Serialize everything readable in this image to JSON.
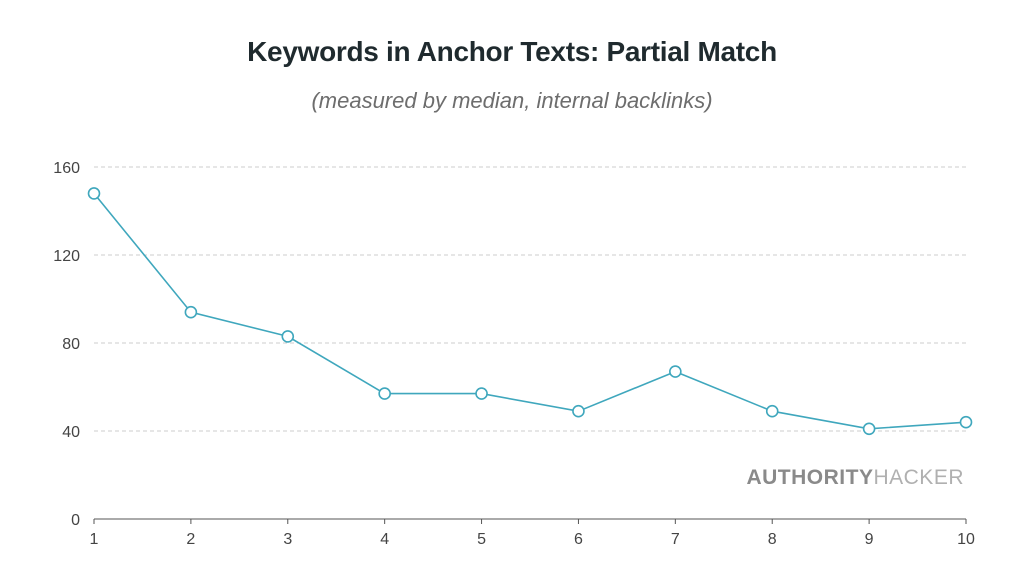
{
  "chart_data": {
    "type": "line",
    "title": "Keywords in Anchor Texts: Partial Match",
    "subtitle": "(measured by median, internal backlinks)",
    "xlabel": "",
    "ylabel": "",
    "x": [
      1,
      2,
      3,
      4,
      5,
      6,
      7,
      8,
      9,
      10
    ],
    "values": [
      148,
      94,
      83,
      57,
      57,
      49,
      67,
      49,
      41,
      44
    ],
    "ylim": [
      0,
      160
    ],
    "yticks": [
      0,
      40,
      80,
      120,
      160
    ],
    "grid": true,
    "line_color": "#3fa7bd",
    "marker": "open-circle"
  },
  "watermark": {
    "bold_part": "AUTHORITY",
    "light_part": "HACKER",
    "bold_color": "#8a8a8a",
    "light_color": "#b0b0b0"
  }
}
